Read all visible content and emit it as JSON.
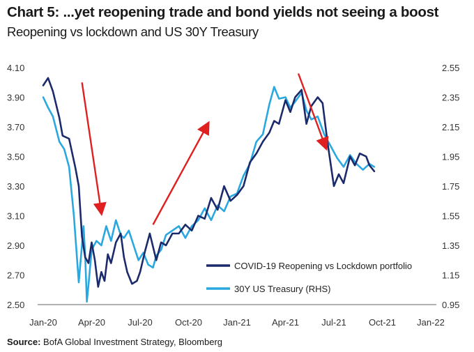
{
  "header": {
    "title": "Chart 5: ...yet reopening trade and bond yields not seeing a boost",
    "subtitle": "Reopening vs lockdown and US 30Y Treasury"
  },
  "source": {
    "label": "Source:",
    "text": "BofA Global Investment Strategy, Bloomberg"
  },
  "colors": {
    "reopening": "#1b2a6b",
    "treasury": "#29a8e0",
    "arrows": "#e02020"
  },
  "chart_data": {
    "type": "line",
    "x_ticks": [
      "Jan-20",
      "Apr-20",
      "Jul-20",
      "Oct-20",
      "Jan-21",
      "Apr-21",
      "Jul-21",
      "Oct-21",
      "Jan-22"
    ],
    "y_left_ticks": [
      "4.10",
      "3.90",
      "3.70",
      "3.50",
      "3.30",
      "3.10",
      "2.90",
      "2.70",
      "2.50"
    ],
    "y_right_ticks": [
      "2.55",
      "2.35",
      "2.15",
      "1.95",
      "1.75",
      "1.55",
      "1.35",
      "1.15",
      "0.95"
    ],
    "ylim_left": [
      2.5,
      4.1
    ],
    "ylim_right": [
      0.95,
      2.55
    ],
    "xlim_months": [
      0,
      24
    ],
    "series": [
      {
        "name": "COVID-19 Reopening vs Lockdown portfolio",
        "axis": "left",
        "x_months": [
          0,
          0.3,
          0.6,
          1.0,
          1.2,
          1.6,
          2.0,
          2.2,
          2.4,
          2.6,
          2.8,
          3.0,
          3.2,
          3.4,
          3.6,
          3.8,
          4.0,
          4.2,
          4.5,
          4.8,
          5.0,
          5.2,
          5.5,
          5.8,
          6.0,
          6.3,
          6.6,
          7.0,
          7.3,
          7.6,
          8.0,
          8.4,
          8.8,
          9.2,
          9.6,
          10.0,
          10.4,
          10.8,
          11.2,
          11.6,
          12.0,
          12.4,
          12.8,
          13.2,
          13.6,
          14.0,
          14.3,
          14.6,
          15.0,
          15.3,
          15.6,
          16.0,
          16.3,
          16.6,
          17.0,
          17.3,
          17.6,
          18.0,
          18.3,
          18.6,
          19.0,
          19.3,
          19.6,
          20.0,
          20.2,
          20.5
        ],
        "values": [
          3.98,
          4.03,
          3.94,
          3.76,
          3.64,
          3.62,
          3.42,
          3.3,
          2.96,
          2.82,
          2.78,
          2.92,
          2.8,
          2.62,
          2.72,
          2.66,
          2.84,
          2.78,
          2.92,
          2.98,
          2.82,
          2.72,
          2.64,
          2.66,
          2.72,
          2.86,
          2.98,
          2.8,
          2.92,
          2.9,
          2.98,
          2.98,
          3.04,
          3.0,
          3.1,
          3.08,
          3.22,
          3.14,
          3.3,
          3.2,
          3.24,
          3.3,
          3.46,
          3.52,
          3.6,
          3.66,
          3.74,
          3.72,
          3.88,
          3.8,
          3.9,
          3.95,
          3.72,
          3.84,
          3.9,
          3.86,
          3.6,
          3.3,
          3.38,
          3.32,
          3.5,
          3.44,
          3.52,
          3.5,
          3.44,
          3.4
        ]
      },
      {
        "name": "30Y US Treasury (RHS)",
        "axis": "right",
        "x_months": [
          0,
          0.3,
          0.6,
          1.0,
          1.3,
          1.6,
          1.9,
          2.2,
          2.5,
          2.6,
          2.7,
          2.8,
          3.0,
          3.3,
          3.6,
          3.9,
          4.2,
          4.5,
          4.8,
          5.0,
          5.3,
          5.6,
          5.9,
          6.2,
          6.5,
          6.8,
          7.0,
          7.3,
          7.6,
          8.0,
          8.4,
          8.8,
          9.2,
          9.6,
          10.0,
          10.4,
          10.8,
          11.2,
          11.6,
          12.0,
          12.4,
          12.8,
          13.2,
          13.6,
          14.0,
          14.3,
          14.6,
          15.0,
          15.3,
          15.6,
          16.0,
          16.3,
          16.6,
          17.0,
          17.4,
          17.8,
          18.2,
          18.6,
          19.0,
          19.4,
          19.8,
          20.2,
          20.5
        ],
        "values": [
          2.35,
          2.28,
          2.22,
          2.05,
          2.0,
          1.88,
          1.55,
          1.1,
          1.48,
          1.28,
          0.97,
          1.08,
          1.32,
          1.38,
          1.35,
          1.48,
          1.38,
          1.52,
          1.42,
          1.4,
          1.45,
          1.35,
          1.25,
          1.3,
          1.22,
          1.2,
          1.28,
          1.32,
          1.42,
          1.45,
          1.48,
          1.4,
          1.48,
          1.52,
          1.6,
          1.52,
          1.62,
          1.58,
          1.68,
          1.7,
          1.82,
          1.9,
          2.05,
          2.1,
          2.3,
          2.42,
          2.34,
          2.35,
          2.28,
          2.32,
          2.38,
          2.26,
          2.2,
          2.22,
          2.1,
          2.02,
          1.94,
          1.88,
          1.96,
          1.9,
          1.86,
          1.9,
          1.88
        ]
      }
    ],
    "arrows": [
      {
        "from": [
          2.4,
          4.0
        ],
        "to": [
          3.6,
          3.12
        ]
      },
      {
        "from": [
          6.8,
          3.04
        ],
        "to": [
          10.2,
          3.72
        ]
      },
      {
        "from": [
          15.8,
          4.06
        ],
        "to": [
          17.5,
          3.56
        ]
      }
    ],
    "legend_position": "bottom-right"
  }
}
